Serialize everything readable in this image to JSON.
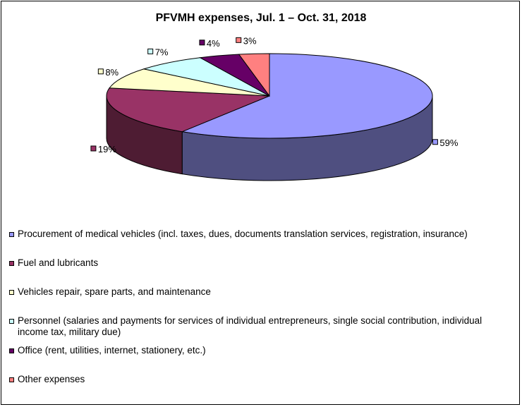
{
  "chart_data": {
    "type": "pie",
    "title": "PFVMH expenses, Jul. 1 – Oct. 31, 2018",
    "slices": [
      {
        "label": "Procurement of medical vehicles (incl. taxes, dues, documents translation services, registration, insurance)",
        "value": 59,
        "value_label": "59%",
        "color": "#9999FF",
        "side_color": "#4F4F80"
      },
      {
        "label": "Fuel and lubricants",
        "value": 19,
        "value_label": "19%",
        "color": "#993366",
        "side_color": "#4E1C33"
      },
      {
        "label": "Vehicles repair, spare parts, and maintenance",
        "value": 8,
        "value_label": "8%",
        "color": "#FFFFCC",
        "side_color": "#80806A"
      },
      {
        "label": "Personnel (salaries and payments for services of individual entrepreneurs, single social contribution, individual income tax, military due)",
        "value": 7,
        "value_label": "7%",
        "color": "#CCFFFF",
        "side_color": "#6A8080"
      },
      {
        "label": "Office (rent, utilities, internet, stationery, etc.)",
        "value": 4,
        "value_label": "4%",
        "color": "#660066",
        "side_color": "#330033"
      },
      {
        "label": "Other expenses",
        "value": 3,
        "value_label": "3%",
        "color": "#FF8080",
        "side_color": "#804040"
      }
    ],
    "legend_position": "bottom"
  }
}
